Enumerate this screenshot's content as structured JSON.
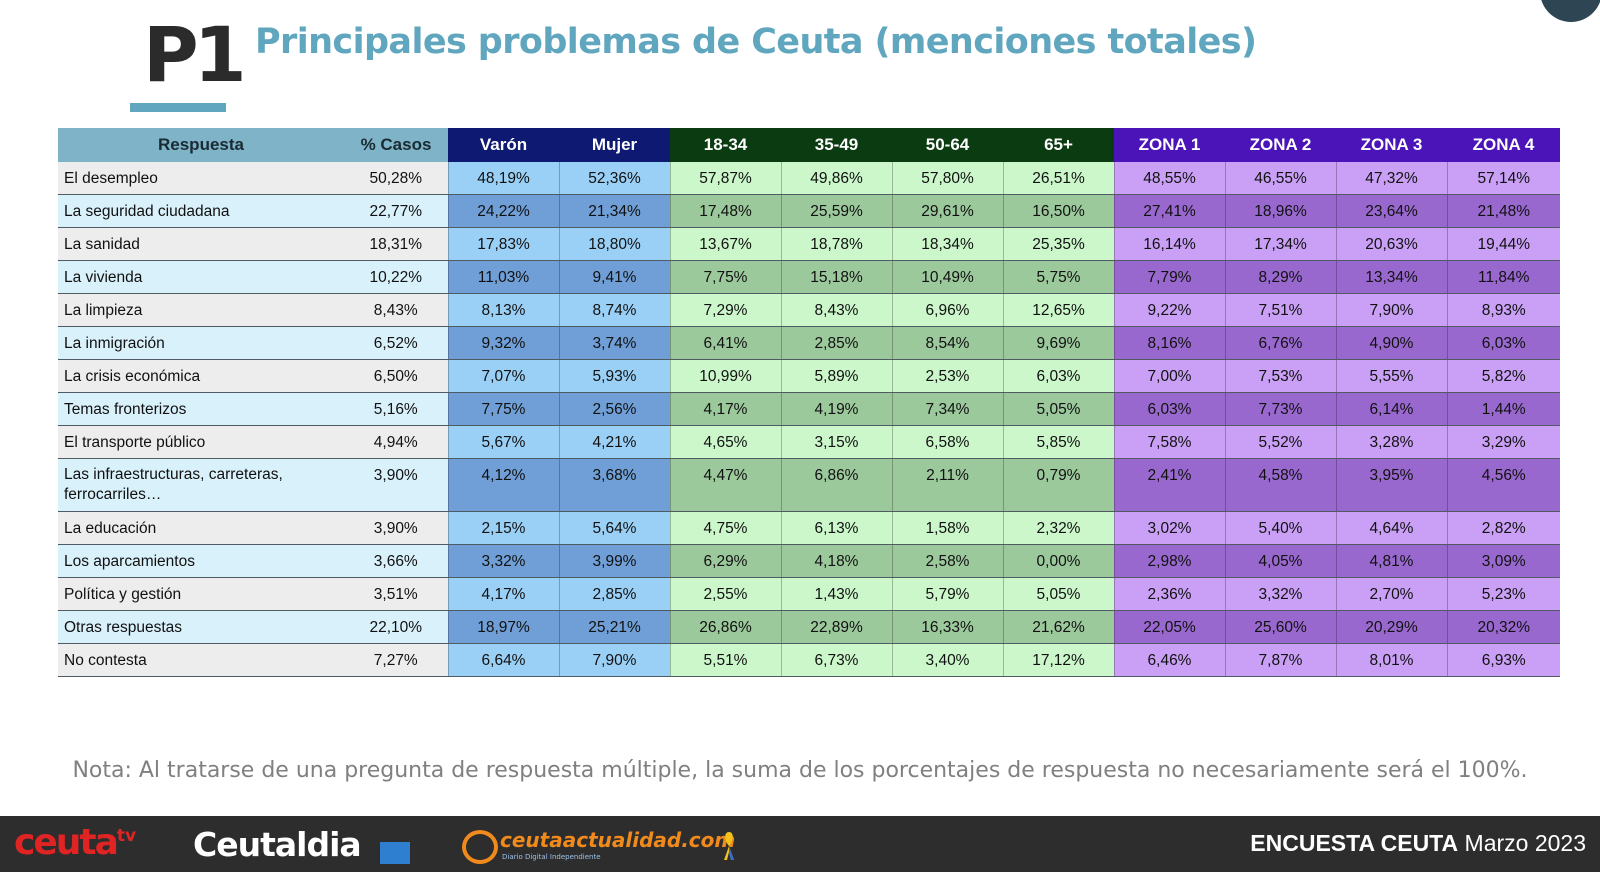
{
  "header": {
    "code": "P1",
    "title": "Principales problemas de Ceuta (menciones totales)"
  },
  "colors": {
    "title": "#5fa6be",
    "sex_header": "#0e1a72",
    "age_header": "#0b3b10",
    "zone_header": "#4b14b8"
  },
  "chart_data": {
    "type": "table",
    "columns": [
      "Respuesta",
      "% Casos",
      "Varón",
      "Mujer",
      "18-34",
      "35-49",
      "50-64",
      "65+",
      "ZONA 1",
      "ZONA 2",
      "ZONA 3",
      "ZONA 4"
    ],
    "rows": [
      [
        "El desempleo",
        "50,28%",
        "48,19%",
        "52,36%",
        "57,87%",
        "49,86%",
        "57,80%",
        "26,51%",
        "48,55%",
        "46,55%",
        "47,32%",
        "57,14%"
      ],
      [
        "La seguridad ciudadana",
        "22,77%",
        "24,22%",
        "21,34%",
        "17,48%",
        "25,59%",
        "29,61%",
        "16,50%",
        "27,41%",
        "18,96%",
        "23,64%",
        "21,48%"
      ],
      [
        "La sanidad",
        "18,31%",
        "17,83%",
        "18,80%",
        "13,67%",
        "18,78%",
        "18,34%",
        "25,35%",
        "16,14%",
        "17,34%",
        "20,63%",
        "19,44%"
      ],
      [
        "La vivienda",
        "10,22%",
        "11,03%",
        "9,41%",
        "7,75%",
        "15,18%",
        "10,49%",
        "5,75%",
        "7,79%",
        "8,29%",
        "13,34%",
        "11,84%"
      ],
      [
        "La limpieza",
        "8,43%",
        "8,13%",
        "8,74%",
        "7,29%",
        "8,43%",
        "6,96%",
        "12,65%",
        "9,22%",
        "7,51%",
        "7,90%",
        "8,93%"
      ],
      [
        "La inmigración",
        "6,52%",
        "9,32%",
        "3,74%",
        "6,41%",
        "2,85%",
        "8,54%",
        "9,69%",
        "8,16%",
        "6,76%",
        "4,90%",
        "6,03%"
      ],
      [
        "La crisis económica",
        "6,50%",
        "7,07%",
        "5,93%",
        "10,99%",
        "5,89%",
        "2,53%",
        "6,03%",
        "7,00%",
        "7,53%",
        "5,55%",
        "5,82%"
      ],
      [
        "Temas fronterizos",
        "5,16%",
        "7,75%",
        "2,56%",
        "4,17%",
        "4,19%",
        "7,34%",
        "5,05%",
        "6,03%",
        "7,73%",
        "6,14%",
        "1,44%"
      ],
      [
        "El transporte público",
        "4,94%",
        "5,67%",
        "4,21%",
        "4,65%",
        "3,15%",
        "6,58%",
        "5,85%",
        "7,58%",
        "5,52%",
        "3,28%",
        "3,29%"
      ],
      [
        "Las infraestructuras, carreteras, ferrocarriles…",
        "3,90%",
        "4,12%",
        "3,68%",
        "4,47%",
        "6,86%",
        "2,11%",
        "0,79%",
        "2,41%",
        "4,58%",
        "3,95%",
        "4,56%"
      ],
      [
        "La educación",
        "3,90%",
        "2,15%",
        "5,64%",
        "4,75%",
        "6,13%",
        "1,58%",
        "2,32%",
        "3,02%",
        "5,40%",
        "4,64%",
        "2,82%"
      ],
      [
        "Los aparcamientos",
        "3,66%",
        "3,32%",
        "3,99%",
        "6,29%",
        "4,18%",
        "2,58%",
        "0,00%",
        "2,98%",
        "4,05%",
        "4,81%",
        "3,09%"
      ],
      [
        "Política y gestión",
        "3,51%",
        "4,17%",
        "2,85%",
        "2,55%",
        "1,43%",
        "5,79%",
        "5,05%",
        "2,36%",
        "3,32%",
        "2,70%",
        "5,23%"
      ],
      [
        "Otras respuestas",
        "22,10%",
        "18,97%",
        "25,21%",
        "26,86%",
        "22,89%",
        "16,33%",
        "21,62%",
        "22,05%",
        "25,60%",
        "20,29%",
        "20,32%"
      ],
      [
        "No contesta",
        "7,27%",
        "6,64%",
        "7,90%",
        "5,51%",
        "6,73%",
        "3,40%",
        "17,12%",
        "6,46%",
        "7,87%",
        "8,01%",
        "6,93%"
      ]
    ]
  },
  "note": "Nota: Al tratarse de una pregunta de respuesta múltiple, la suma de los porcentajes de respuesta no necesariamente será el 100%.",
  "footer": {
    "logo_ceuta": "ceuta",
    "logo_ceuta_tv": "tv",
    "logo_ceutaldia": "Ceutaldia",
    "logo_actualidad": "ceutaactualidad.com",
    "logo_actualidad_sub": "Diario Digital Independiente",
    "survey_name": "ENCUESTA CEUTA",
    "survey_date": "Marzo 2023"
  }
}
